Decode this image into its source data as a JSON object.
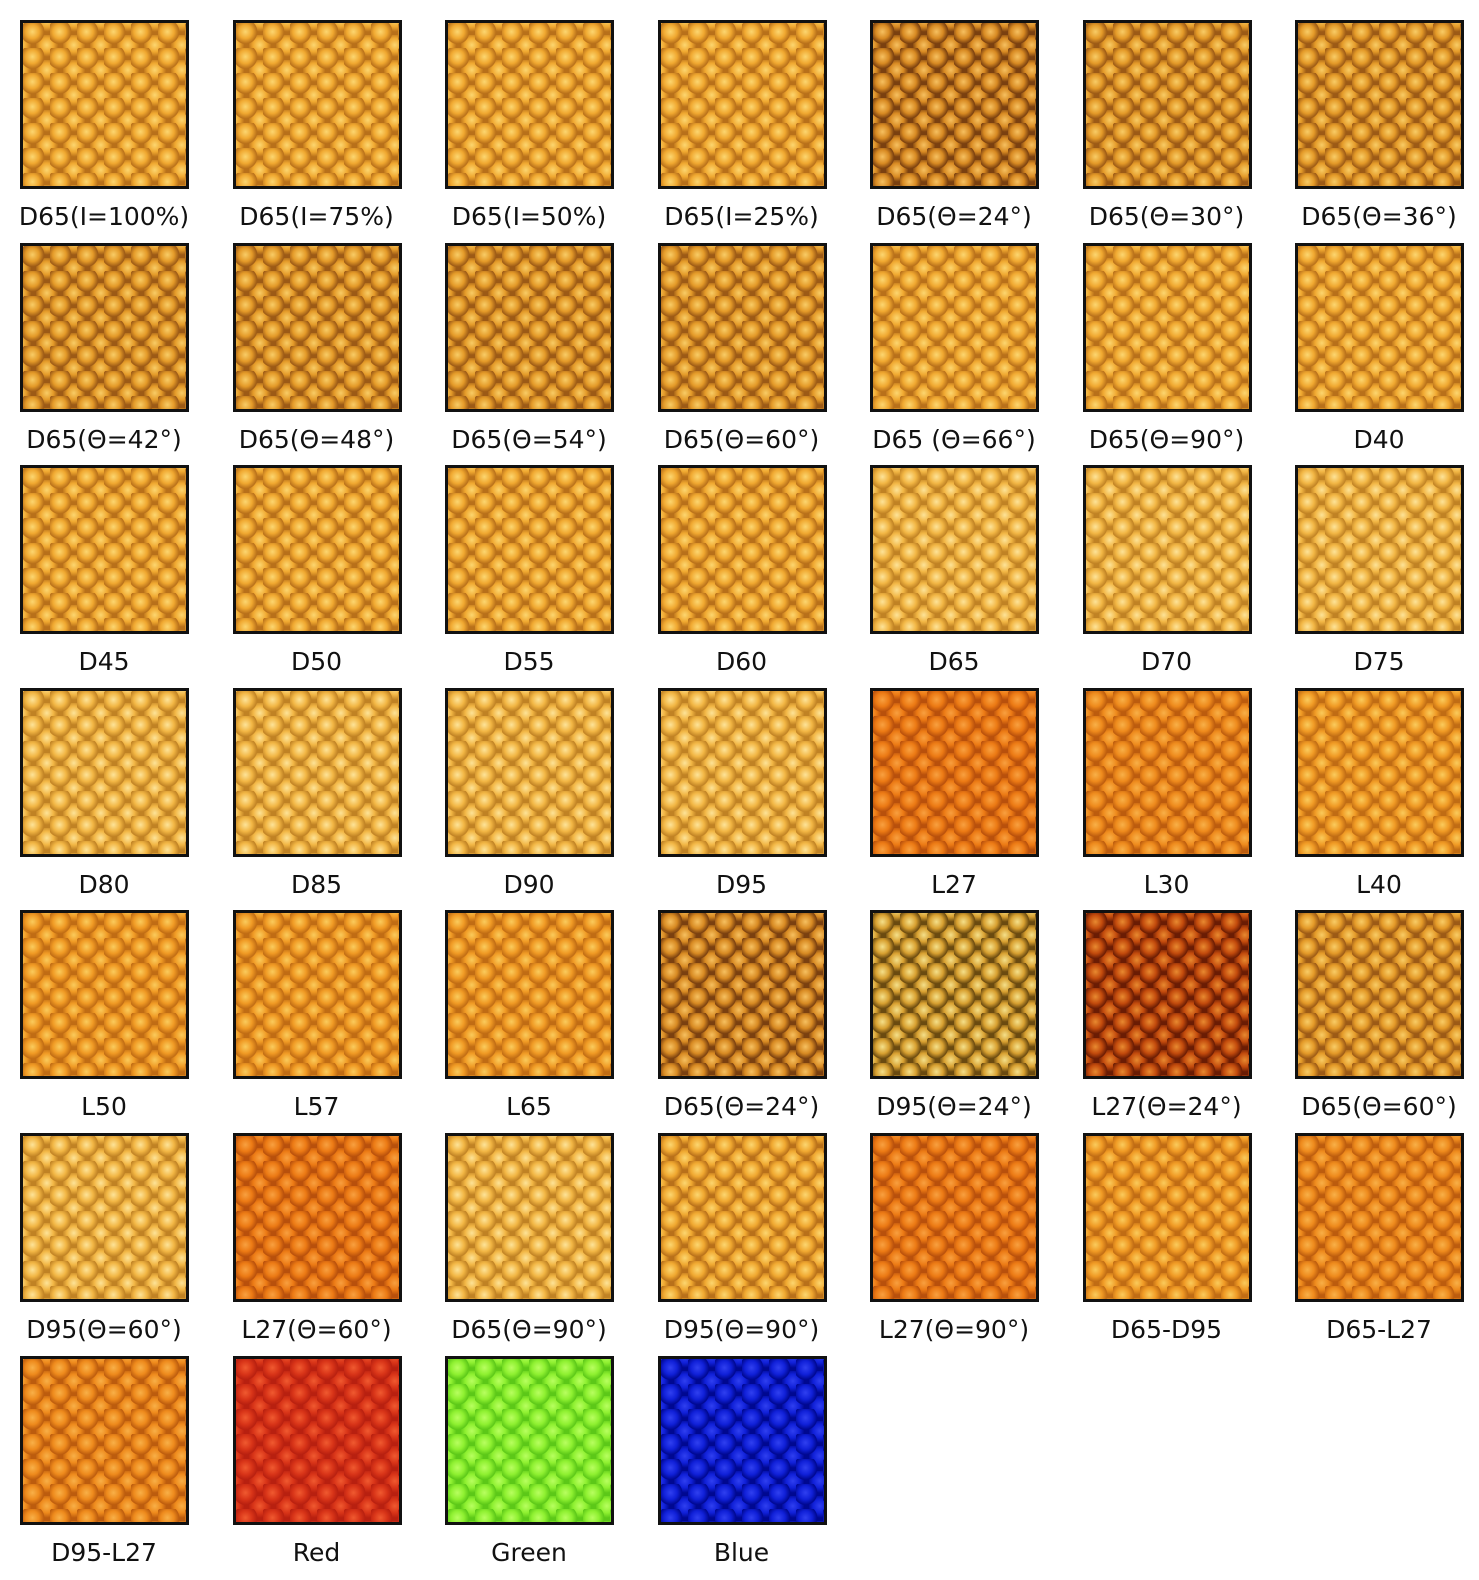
{
  "tiles": [
    {
      "label": "D65(I=100%)"
    },
    {
      "label": "D65(I=75%)"
    },
    {
      "label": "D65(I=50%)"
    },
    {
      "label": "D65(I=25%)"
    },
    {
      "label": "D65(Θ=24°)"
    },
    {
      "label": "D65(Θ=30°)"
    },
    {
      "label": "D65(Θ=36°)"
    },
    {
      "label": "D65(Θ=42°)"
    },
    {
      "label": "D65(Θ=48°)"
    },
    {
      "label": "D65(Θ=54°)"
    },
    {
      "label": "D65(Θ=60°)"
    },
    {
      "label": "D65 (Θ=66°)"
    },
    {
      "label": "D65(Θ=90°)"
    },
    {
      "label": "D40"
    },
    {
      "label": "D45"
    },
    {
      "label": "D50"
    },
    {
      "label": "D55"
    },
    {
      "label": "D60"
    },
    {
      "label": "D65"
    },
    {
      "label": "D70"
    },
    {
      "label": "D75"
    },
    {
      "label": "D80"
    },
    {
      "label": "D85"
    },
    {
      "label": "D90"
    },
    {
      "label": "D95"
    },
    {
      "label": "L27"
    },
    {
      "label": "L30"
    },
    {
      "label": "L40"
    },
    {
      "label": "L50"
    },
    {
      "label": "L57"
    },
    {
      "label": "L65"
    },
    {
      "label": "D65(Θ=24°)"
    },
    {
      "label": "D95(Θ=24°)"
    },
    {
      "label": "L27(Θ=24°)"
    },
    {
      "label": "D65(Θ=60°)"
    },
    {
      "label": "D95(Θ=60°)"
    },
    {
      "label": "L27(Θ=60°)"
    },
    {
      "label": "D65(Θ=90°)"
    },
    {
      "label": "D95(Θ=90°)"
    },
    {
      "label": "L27(Θ=90°)"
    },
    {
      "label": "D65-D95"
    },
    {
      "label": "D65-L27"
    },
    {
      "label": "D95-L27"
    },
    {
      "label": "Red"
    },
    {
      "label": "Green"
    },
    {
      "label": "Blue"
    }
  ]
}
